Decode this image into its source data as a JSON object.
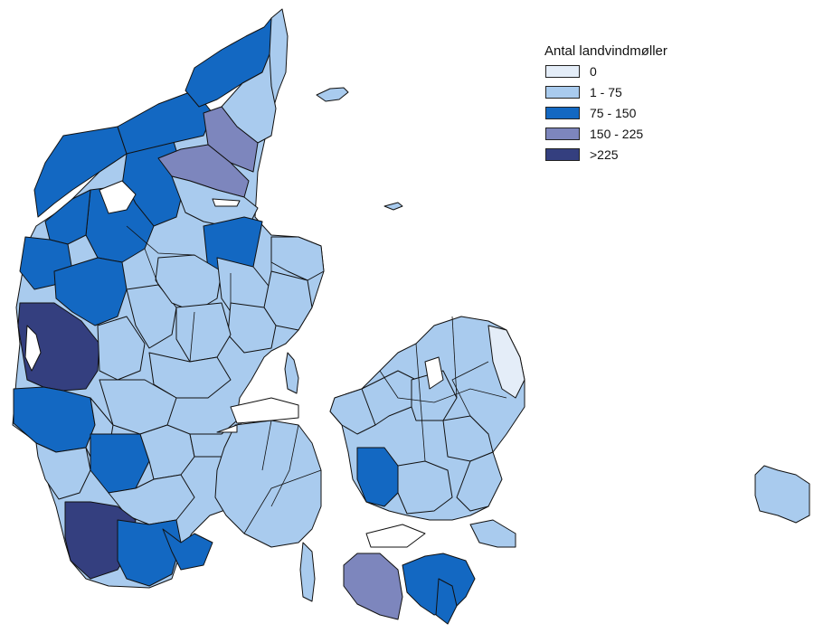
{
  "legend": {
    "title": "Antal landvindmøller",
    "items": [
      {
        "label": "0",
        "color": "#e4edf8"
      },
      {
        "label": "1 - 75",
        "color": "#a9cbee"
      },
      {
        "label": "75 - 150",
        "color": "#1368c2"
      },
      {
        "label": "150 - 225",
        "color": "#7d86bd"
      },
      {
        "label": ">225",
        "color": "#343f7f"
      }
    ]
  },
  "map": {
    "subject": "Denmark municipalities",
    "classes": [
      "0",
      "1 - 75",
      "75 - 150",
      "150 - 225",
      ">225"
    ]
  }
}
